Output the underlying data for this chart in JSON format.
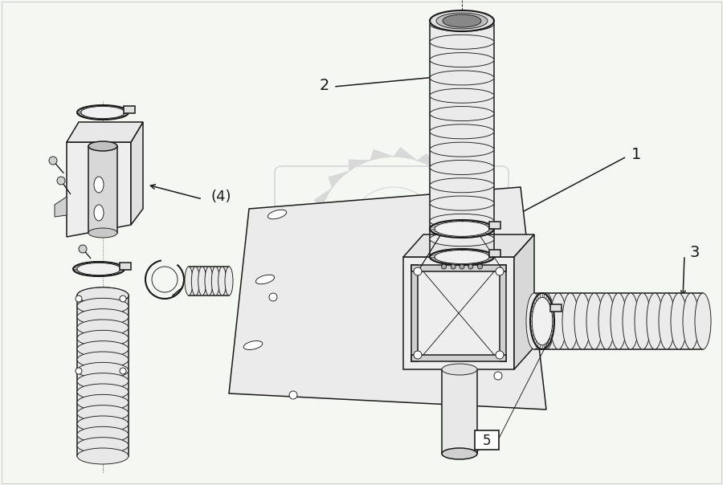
{
  "background_color": "#F5F7F2",
  "line_color": "#1a1a1a",
  "fill_light": "#f0f0f0",
  "fill_mid": "#e0e0e0",
  "fill_dark": "#c8c8c8",
  "watermark_color": "#d8d8d8",
  "label_1": "1",
  "label_2": "2",
  "label_3": "3",
  "label_4": "(4)",
  "label_5": "5",
  "fig_width": 9.0,
  "fig_height": 6.04,
  "dpi": 100
}
